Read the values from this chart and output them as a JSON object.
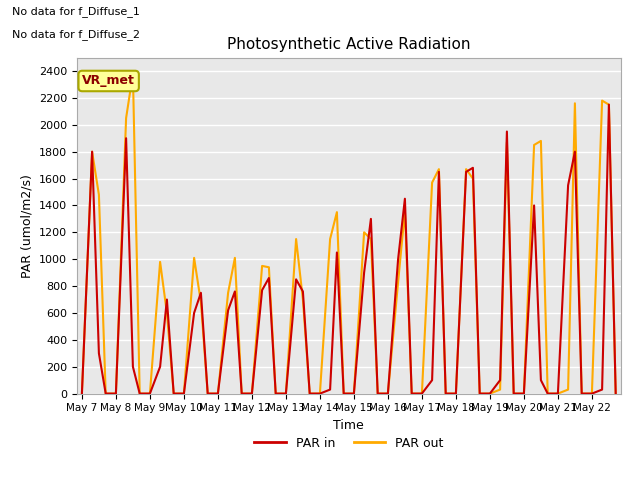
{
  "title": "Photosynthetic Active Radiation",
  "xlabel": "Time",
  "ylabel": "PAR (umol/m2/s)",
  "note_line1": "No data for f_Diffuse_1",
  "note_line2": "No data for f_Diffuse_2",
  "vr_label": "VR_met",
  "ylim": [
    0,
    2500
  ],
  "yticks": [
    0,
    200,
    400,
    600,
    800,
    1000,
    1200,
    1400,
    1600,
    1800,
    2000,
    2200,
    2400
  ],
  "x_tick_labels": [
    "May 7",
    "May 8",
    "May 9",
    "May 10",
    "May 11",
    "May 12",
    "May 13",
    "May 14",
    "May 15",
    "May 16",
    "May 17",
    "May 18",
    "May 19",
    "May 20",
    "May 21",
    "May 22"
  ],
  "par_in_color": "#cc0000",
  "par_out_color": "#ffaa00",
  "bg_color": "#e8e8e8",
  "grid_color": "#ffffff",
  "vr_box_facecolor": "#ffff99",
  "vr_box_edgecolor": "#aaa800",
  "par_in_x": [
    0.0,
    0.3,
    0.5,
    0.7,
    1.0,
    1.3,
    1.5,
    1.7,
    2.0,
    2.3,
    2.5,
    2.7,
    3.0,
    3.3,
    3.5,
    3.7,
    4.0,
    4.3,
    4.5,
    4.7,
    5.0,
    5.3,
    5.5,
    5.7,
    6.0,
    6.3,
    6.5,
    6.7,
    7.0,
    7.3,
    7.5,
    7.7,
    8.0,
    8.3,
    8.5,
    8.7,
    9.0,
    9.3,
    9.5,
    9.7,
    10.0,
    10.3,
    10.5,
    10.7,
    11.0,
    11.3,
    11.5,
    11.7,
    12.0,
    12.3,
    12.5,
    12.7,
    13.0,
    13.3,
    13.5,
    13.7,
    14.0,
    14.3,
    14.5,
    14.7,
    15.0,
    15.3,
    15.5,
    15.7
  ],
  "par_in_y": [
    0,
    1800,
    300,
    0,
    0,
    1900,
    200,
    0,
    0,
    200,
    700,
    0,
    0,
    600,
    750,
    0,
    0,
    620,
    760,
    0,
    0,
    770,
    860,
    0,
    0,
    850,
    760,
    0,
    0,
    30,
    1050,
    0,
    0,
    900,
    1300,
    0,
    0,
    1000,
    1450,
    0,
    0,
    100,
    1650,
    0,
    0,
    1650,
    1680,
    0,
    0,
    100,
    1950,
    0,
    0,
    1400,
    100,
    0,
    0,
    1550,
    1800,
    0,
    0,
    30,
    2150,
    0
  ],
  "par_out_x": [
    0.0,
    0.3,
    0.5,
    0.7,
    1.0,
    1.3,
    1.5,
    1.7,
    2.0,
    2.3,
    2.5,
    2.7,
    3.0,
    3.3,
    3.5,
    3.7,
    4.0,
    4.3,
    4.5,
    4.7,
    5.0,
    5.3,
    5.5,
    5.7,
    6.0,
    6.3,
    6.5,
    6.7,
    7.0,
    7.3,
    7.5,
    7.7,
    8.0,
    8.3,
    8.5,
    8.7,
    9.0,
    9.3,
    9.5,
    9.7,
    10.0,
    10.3,
    10.5,
    10.7,
    11.0,
    11.3,
    11.5,
    11.7,
    12.0,
    12.3,
    12.5,
    12.7,
    13.0,
    13.3,
    13.5,
    13.7,
    14.0,
    14.3,
    14.5,
    14.7,
    15.0,
    15.3,
    15.5,
    15.7
  ],
  "par_out_y": [
    0,
    1800,
    1480,
    0,
    0,
    2050,
    2380,
    0,
    0,
    980,
    600,
    0,
    0,
    1010,
    680,
    0,
    0,
    750,
    1010,
    0,
    0,
    950,
    940,
    0,
    0,
    1150,
    700,
    0,
    0,
    1150,
    1350,
    0,
    0,
    1200,
    1150,
    0,
    0,
    830,
    1360,
    0,
    0,
    1570,
    1670,
    0,
    0,
    1670,
    1600,
    0,
    0,
    30,
    1870,
    0,
    0,
    1850,
    1880,
    0,
    0,
    30,
    2160,
    0,
    0,
    2180,
    2150,
    0
  ]
}
